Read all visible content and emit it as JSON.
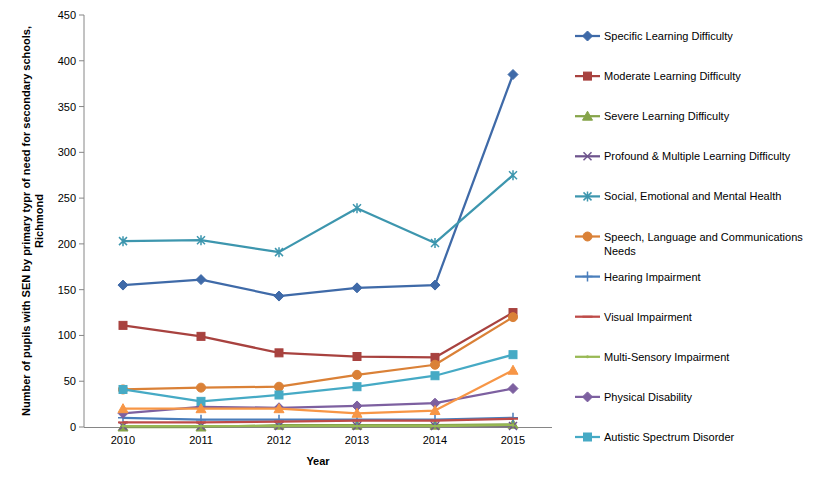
{
  "chart_data": {
    "type": "line",
    "y_label": "Number of pupils with SEN  by primary typr of need for secondary schools, Richmond",
    "x_label": "Year",
    "categories": [
      "2010",
      "2011",
      "2012",
      "2013",
      "2014",
      "2015"
    ],
    "ylim": [
      0,
      450
    ],
    "yticks": [
      0,
      50,
      100,
      150,
      200,
      250,
      300,
      350,
      400,
      450
    ],
    "grid": false,
    "legend": "right",
    "series": [
      {
        "name": "Specific Learning Difficulty",
        "color": "#3f6aa8",
        "marker": "diamond",
        "values": [
          155,
          161,
          143,
          152,
          155,
          385
        ]
      },
      {
        "name": "Moderate Learning Difficulty",
        "color": "#a8423f",
        "marker": "square",
        "values": [
          111,
          99,
          81,
          77,
          76,
          125
        ]
      },
      {
        "name": "Severe Learning Difficulty",
        "color": "#86a44a",
        "marker": "triangle",
        "values": [
          0,
          0,
          2,
          2,
          2,
          3
        ]
      },
      {
        "name": "Profound & Multiple Learning Difficulty",
        "color": "#6e548d",
        "marker": "x",
        "values": [
          1,
          1,
          1,
          1,
          1,
          1
        ]
      },
      {
        "name": "Social, Emotional and Mental Health",
        "color": "#3d96ae",
        "marker": "star",
        "values": [
          203,
          204,
          191,
          239,
          201,
          275
        ]
      },
      {
        "name": "Speech, Language and Communications Needs",
        "color": "#da8137",
        "marker": "circle",
        "values": [
          41,
          43,
          44,
          57,
          68,
          120
        ]
      },
      {
        "name": "Hearing Impairment",
        "color": "#4a7ebb",
        "marker": "plus",
        "values": [
          10,
          8,
          8,
          8,
          8,
          10
        ]
      },
      {
        "name": "Visual Impairment",
        "color": "#be4b48",
        "marker": "dash",
        "values": [
          5,
          5,
          6,
          7,
          7,
          9
        ]
      },
      {
        "name": "Multi-Sensory Impairment",
        "color": "#98b954",
        "marker": "none",
        "values": [
          1,
          1,
          1,
          1,
          1,
          2
        ]
      },
      {
        "name": "Physical Disability",
        "color": "#7d60a0",
        "marker": "diamond",
        "values": [
          15,
          22,
          21,
          23,
          26,
          42
        ]
      },
      {
        "name": "Autistic Spectrum Disorder",
        "color": "#46aac5",
        "marker": "square",
        "values": [
          41,
          28,
          35,
          44,
          56,
          79
        ]
      },
      {
        "name": null,
        "color": "#f79646",
        "marker": "triangle",
        "values": [
          20,
          20,
          20,
          15,
          18,
          62
        ]
      }
    ]
  }
}
